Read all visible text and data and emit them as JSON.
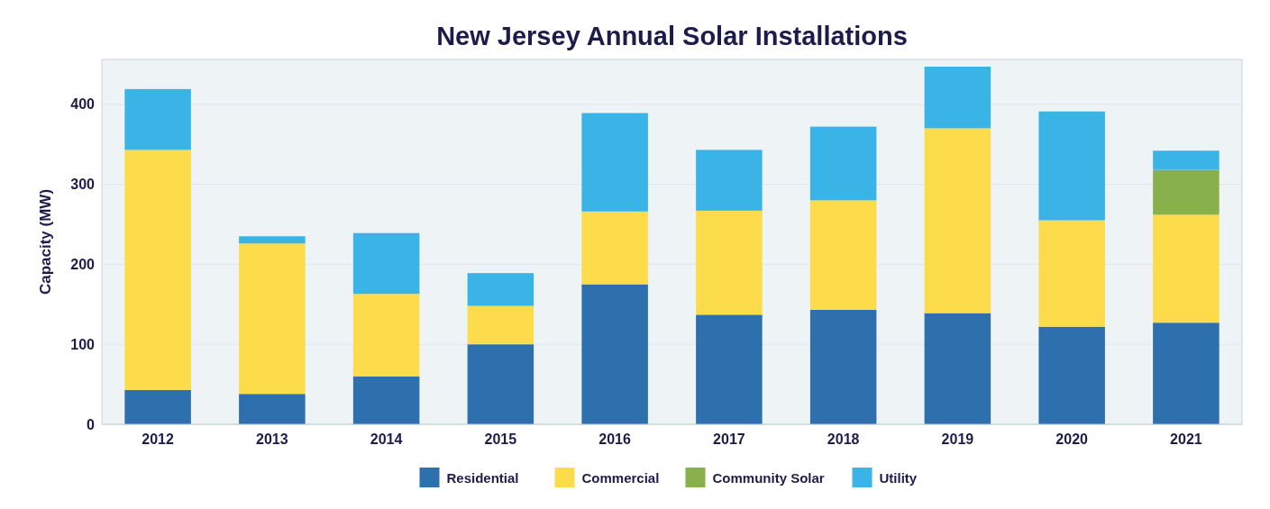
{
  "chart_data": {
    "type": "bar",
    "title": "New Jersey Annual Solar Installations",
    "ylabel": "Capacity (MW)",
    "categories": [
      "2012",
      "2013",
      "2014",
      "2015",
      "2016",
      "2017",
      "2018",
      "2019",
      "2020",
      "2021"
    ],
    "stacked": true,
    "ylim": [
      0,
      456
    ],
    "yticks": [
      0,
      100,
      200,
      300,
      400
    ],
    "grid": "y",
    "legend": "bottom",
    "series": [
      {
        "name": "Residential",
        "color": "#2e6fad",
        "values": [
          43,
          38,
          60,
          100,
          175,
          137,
          143,
          139,
          122,
          127
        ]
      },
      {
        "name": "Commercial",
        "color": "#fcdc4a",
        "values": [
          300,
          188,
          103,
          48,
          91,
          130,
          137,
          231,
          133,
          135
        ]
      },
      {
        "name": "Community Solar",
        "color": "#88b04b",
        "values": [
          0,
          0,
          0,
          0,
          0,
          0,
          0,
          0,
          0,
          56
        ]
      },
      {
        "name": "Utility",
        "color": "#3ab4e6",
        "values": [
          76,
          9,
          76,
          41,
          123,
          76,
          92,
          77,
          136,
          24
        ]
      }
    ]
  }
}
